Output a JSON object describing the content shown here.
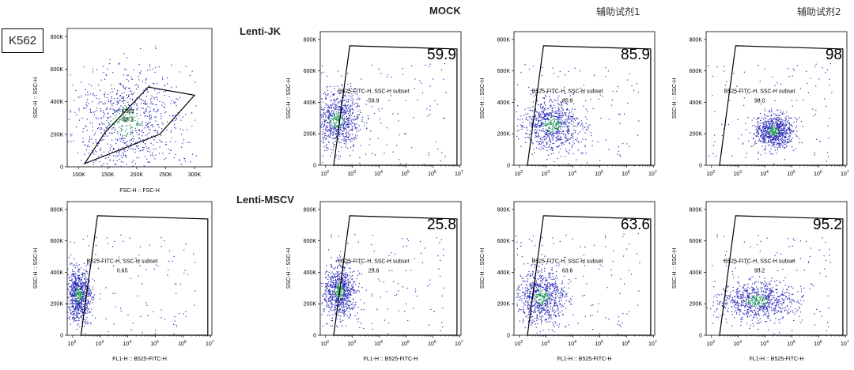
{
  "cell_line": "K562",
  "column_headers": [
    "MOCK",
    "辅助试剂1",
    "辅助试剂2"
  ],
  "row_labels": [
    "Lenti-JK",
    "Lenti-MSCV"
  ],
  "colors": {
    "dots": "#2a2ab8",
    "dense": "#1f8f5a",
    "gate": "#000000"
  },
  "chart_data": [
    {
      "type": "scatter",
      "id": "fsc-ssc",
      "xlabel": "FSC-H :: FSC-H",
      "ylabel": "SSC-H :: SSC-H",
      "x_ticks": [
        "100K",
        "150K",
        "200K",
        "250K",
        "300K"
      ],
      "y_ticks": [
        "0",
        "200K",
        "400K",
        "600K",
        "800K"
      ],
      "xlim": [
        80000,
        330000
      ],
      "ylim": [
        0,
        850000
      ],
      "gate_name": "K562",
      "gate_value": "85.2",
      "gate_polygon": [
        [
          110000,
          20000
        ],
        [
          145000,
          210000
        ],
        [
          220000,
          490000
        ],
        [
          300000,
          440000
        ],
        [
          240000,
          200000
        ]
      ],
      "population": {
        "cx": 180000,
        "cy": 280000,
        "sx": 45000,
        "sy": 150000
      }
    },
    {
      "type": "scatter",
      "id": "jk-mock",
      "xlabel": "",
      "ylabel": "SSC-H :: SSC-H",
      "gate_name": "B525-FITC-H, SSC-H subset",
      "gate_value": "59.9",
      "big_value": "59.9",
      "population": {
        "cx": 2.4,
        "cy": 290000,
        "sx": 0.45,
        "sy": 90000
      }
    },
    {
      "type": "scatter",
      "id": "jk-r1",
      "xlabel": "",
      "ylabel": "SSC-H :: SSC-H",
      "gate_name": "B525-FITC-H, SSC-H subset",
      "gate_value": "85.9",
      "big_value": "85.9",
      "population": {
        "cx": 3.2,
        "cy": 260000,
        "sx": 0.55,
        "sy": 80000
      }
    },
    {
      "type": "scatter",
      "id": "jk-r2",
      "xlabel": "",
      "ylabel": "SSC-H :: SSC-H",
      "gate_name": "B525-FITC-H, SSC-H subset",
      "gate_value": "98.0",
      "big_value": "98",
      "population": {
        "cx": 4.3,
        "cy": 220000,
        "sx": 0.35,
        "sy": 55000
      }
    },
    {
      "type": "scatter",
      "id": "msc-neg",
      "xlabel": "FL1-H :: B525-FITC-H",
      "ylabel": "SSC-H :: SSC-H",
      "gate_name": "B525-FITC-H, SSC-H subset",
      "gate_value": "0.65",
      "population": {
        "cx": 2.2,
        "cy": 260000,
        "sx": 0.22,
        "sy": 80000
      }
    },
    {
      "type": "scatter",
      "id": "msc-mock",
      "xlabel": "FL1-H :: B525-FITC-H",
      "ylabel": "SSC-H :: SSC-H",
      "gate_name": "B525-FITC-H, SSC-H subset",
      "gate_value": "25.8",
      "big_value": "25.8",
      "population": {
        "cx": 2.5,
        "cy": 280000,
        "sx": 0.3,
        "sy": 85000
      }
    },
    {
      "type": "scatter",
      "id": "msc-r1",
      "xlabel": "FL1-H :: B525-FITC-H",
      "ylabel": "SSC-H :: SSC-H",
      "gate_name": "B525-FITC-H, SSC-H subset",
      "gate_value": "63.6",
      "big_value": "63.6",
      "population": {
        "cx": 2.8,
        "cy": 250000,
        "sx": 0.45,
        "sy": 85000
      }
    },
    {
      "type": "scatter",
      "id": "msc-r2",
      "xlabel": "FL1-H :: B525-FITC-H",
      "ylabel": "SSC-H :: SSC-H",
      "gate_name": "B525-FITC-H, SSC-H subset",
      "gate_value": "95.2",
      "big_value": "95.2",
      "population": {
        "cx": 3.7,
        "cy": 220000,
        "sx": 0.7,
        "sy": 60000
      }
    }
  ],
  "log_axis": {
    "xlim": [
      1.8,
      7.05
    ],
    "ylim": [
      0,
      850000
    ],
    "x_tick_exponents": [
      "2",
      "3",
      "4",
      "5",
      "6",
      "7"
    ],
    "y_ticks": [
      "0",
      "200K",
      "400K",
      "600K",
      "800K"
    ],
    "gate_polygon": [
      [
        2.3,
        0
      ],
      [
        2.9,
        760000
      ],
      [
        6.9,
        740000
      ],
      [
        6.9,
        0
      ]
    ]
  }
}
